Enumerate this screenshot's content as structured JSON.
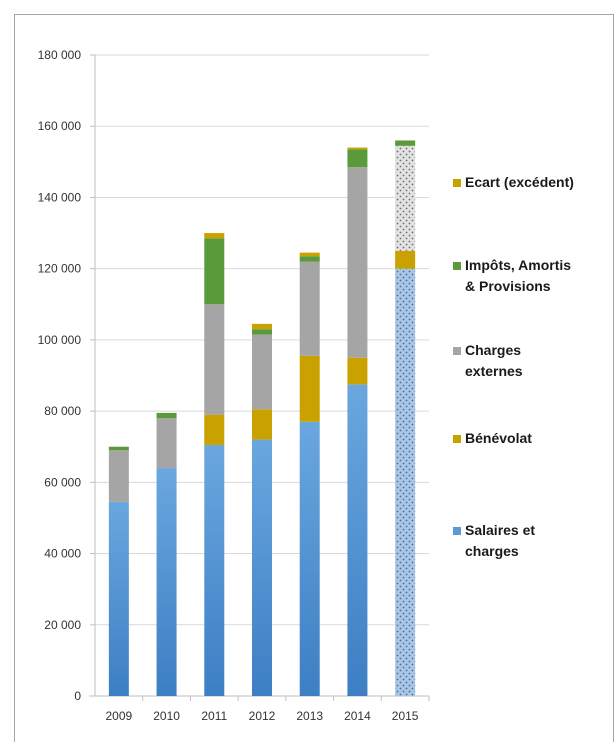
{
  "chart_data": {
    "type": "bar",
    "stacked": true,
    "categories": [
      "2009",
      "2010",
      "2011",
      "2012",
      "2013",
      "2014",
      "2015"
    ],
    "ylim": [
      0,
      180000
    ],
    "yticks": [
      0,
      20000,
      40000,
      60000,
      80000,
      100000,
      120000,
      140000,
      160000,
      180000
    ],
    "ytick_labels": [
      "0",
      "20 000",
      "40 000",
      "60 000",
      "80 000",
      "100 000",
      "120 000",
      "140 000",
      "160 000",
      "180 000"
    ],
    "grid": true,
    "legend_position": "right",
    "series": [
      {
        "name": "Salaires et charges",
        "color": "#5b9bd5",
        "values": [
          54500,
          64000,
          70500,
          72000,
          77000,
          87500,
          120000
        ]
      },
      {
        "name": "Bénévolat",
        "color": "#c9a100",
        "values": [
          0,
          0,
          8500,
          8500,
          18500,
          7500,
          5000
        ]
      },
      {
        "name": "Charges externes",
        "color": "#a5a5a5",
        "values": [
          14500,
          14000,
          31000,
          21000,
          26500,
          53500,
          29500
        ]
      },
      {
        "name": "Impôts, Amortis & Provisions",
        "color": "#5a9a3a",
        "values": [
          1000,
          1500,
          18500,
          1500,
          1500,
          5000,
          1500
        ]
      },
      {
        "name": "Ecart (excédent)",
        "color": "#c9a100",
        "values": [
          0,
          0,
          1500,
          1500,
          1000,
          500,
          0
        ]
      }
    ],
    "hatched_categories": [
      "2015"
    ],
    "legend_lines": [
      [
        "Ecart (excédent)"
      ],
      [
        "Impôts, Amortis",
        "& Provisions"
      ],
      [
        "Charges",
        "externes"
      ],
      [
        "Bénévolat"
      ],
      [
        "Salaires et",
        "charges"
      ]
    ],
    "legend_colors": [
      "#c9a100",
      "#5a9a3a",
      "#a5a5a5",
      "#c9a100",
      "#5b9bd5"
    ]
  }
}
